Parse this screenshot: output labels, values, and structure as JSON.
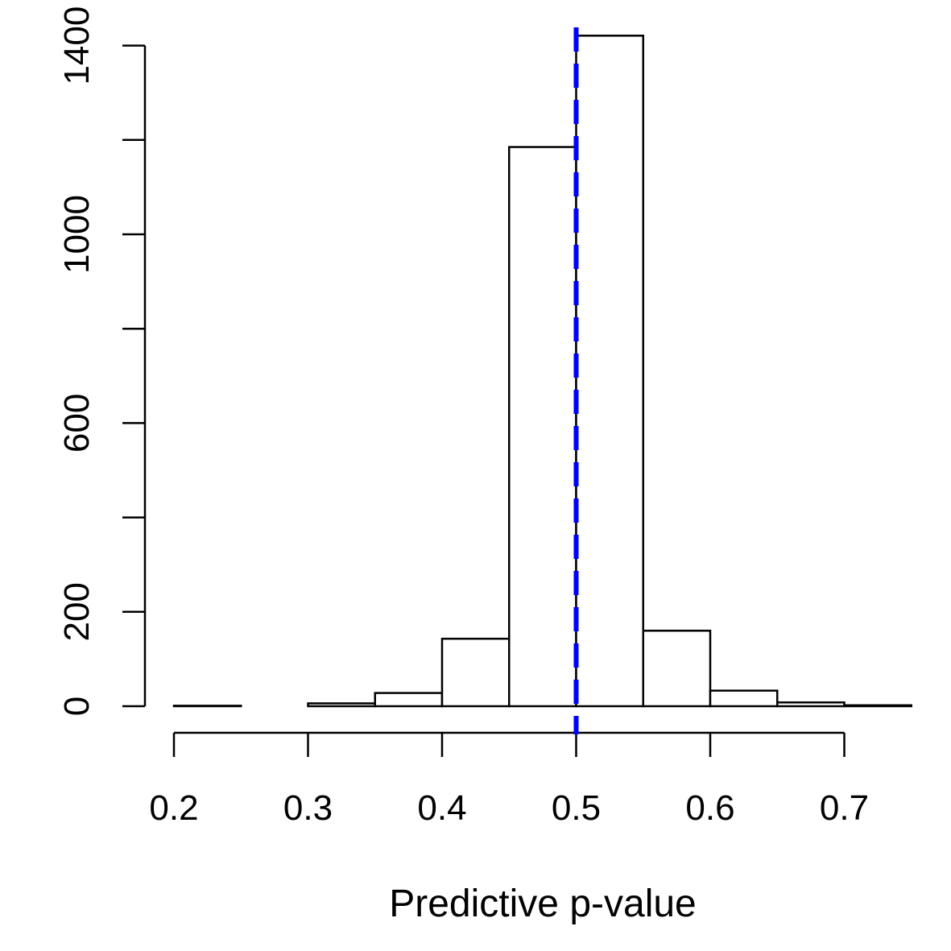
{
  "chart_data": {
    "type": "bar",
    "subtype": "histogram",
    "title": "",
    "xlabel": "Predictive p-value",
    "ylabel": "",
    "bins": [
      {
        "start": 0.2,
        "end": 0.25,
        "count": 1
      },
      {
        "start": 0.25,
        "end": 0.3,
        "count": 0
      },
      {
        "start": 0.3,
        "end": 0.35,
        "count": 6
      },
      {
        "start": 0.35,
        "end": 0.4,
        "count": 28
      },
      {
        "start": 0.4,
        "end": 0.45,
        "count": 143
      },
      {
        "start": 0.45,
        "end": 0.5,
        "count": 1185
      },
      {
        "start": 0.5,
        "end": 0.55,
        "count": 1421
      },
      {
        "start": 0.55,
        "end": 0.6,
        "count": 160
      },
      {
        "start": 0.6,
        "end": 0.65,
        "count": 33
      },
      {
        "start": 0.65,
        "end": 0.7,
        "count": 8
      },
      {
        "start": 0.7,
        "end": 0.75,
        "count": 2
      }
    ],
    "x_ticks": [
      0.2,
      0.3,
      0.4,
      0.5,
      0.6,
      0.7
    ],
    "x_tick_labels": [
      "0.2",
      "0.3",
      "0.4",
      "0.5",
      "0.6",
      "0.7"
    ],
    "y_ticks": [
      0,
      200,
      400,
      600,
      800,
      1000,
      1200,
      1400
    ],
    "y_tick_labels": [
      "0",
      "200",
      "",
      "600",
      "",
      "1000",
      "",
      "1400"
    ],
    "xlim": [
      0.2,
      0.75
    ],
    "ylim": [
      0,
      1400
    ],
    "reference_line": {
      "x": 0.5,
      "style": "dashed",
      "color": "#0000ff"
    },
    "bar_fill": "#ffffff",
    "bar_stroke": "#000000",
    "grid": false
  }
}
